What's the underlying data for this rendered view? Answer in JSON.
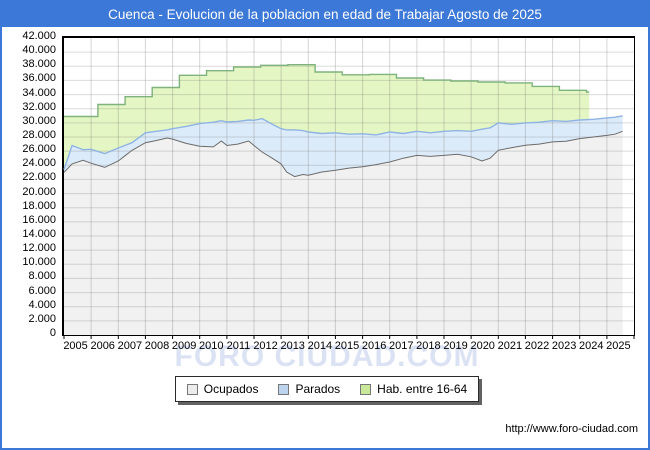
{
  "window": {
    "title": "Cuenca - Evolucion de la poblacion en edad de Trabajar Agosto de 2025",
    "title_bar_color": "#3c78d8",
    "frame_color": "#3c78d8"
  },
  "watermark": {
    "text": "FORO CIUDAD.COM"
  },
  "footer": {
    "url": "http://www.foro-ciudad.com"
  },
  "legend": {
    "items": [
      {
        "label": "Ocupados",
        "swatch_fill": "#ececec",
        "swatch_border": "#777777"
      },
      {
        "label": "Parados",
        "swatch_fill": "#bcd4ee",
        "swatch_border": "#777777"
      },
      {
        "label": "Hab. entre 16-64",
        "swatch_fill": "#c9e89a",
        "swatch_border": "#777777"
      }
    ]
  },
  "chart_data": {
    "type": "area",
    "title": "Cuenca - Evolucion de la poblacion en edad de Trabajar Agosto de 2025",
    "xlabel": "",
    "ylabel": "",
    "xlim": [
      2005,
      2026
    ],
    "ylim": [
      0,
      42000
    ],
    "grid": true,
    "legend_position": "bottom-outside",
    "stacking": "Parados is stacked on top of Ocupados (blue band = Ocupados+Parados); Hab. entre 16-64 is a yearly stepped background area ending early 2024",
    "x_ticks": [
      "2005",
      "2006",
      "2007",
      "2008",
      "2009",
      "2010",
      "2011",
      "2012",
      "2013",
      "2014",
      "2015",
      "2016",
      "2017",
      "2018",
      "2019",
      "2020",
      "2021",
      "2022",
      "2023",
      "2024",
      "2025"
    ],
    "y_ticks": [
      "42.000",
      "40.000",
      "38.000",
      "36.000",
      "34.000",
      "32.000",
      "30.000",
      "28.000",
      "26.000",
      "24.000",
      "22.000",
      "20.000",
      "18.000",
      "16.000",
      "14.000",
      "12.000",
      "10.000",
      "8.000",
      "6.000",
      "4.000",
      "2.000",
      "0"
    ],
    "series": [
      {
        "name": "Ocupados",
        "style": "area",
        "line_color": "#6b6b6b",
        "fill_color": "#f1f1f1",
        "x": [
          2005.0,
          2005.3,
          2005.7,
          2006.0,
          2006.5,
          2007.0,
          2007.5,
          2008.0,
          2008.4,
          2008.8,
          2009.0,
          2009.5,
          2010.0,
          2010.5,
          2010.8,
          2011.0,
          2011.4,
          2011.8,
          2012.0,
          2012.3,
          2012.7,
          2013.0,
          2013.2,
          2013.5,
          2013.8,
          2014.0,
          2014.5,
          2015.0,
          2015.5,
          2016.0,
          2016.5,
          2017.0,
          2017.5,
          2018.0,
          2018.5,
          2019.0,
          2019.5,
          2020.0,
          2020.4,
          2020.7,
          2021.0,
          2021.5,
          2022.0,
          2022.5,
          2023.0,
          2023.5,
          2024.0,
          2024.5,
          2025.0,
          2025.3,
          2025.58
        ],
        "values": [
          23000,
          24200,
          24700,
          24300,
          23700,
          24600,
          26100,
          27200,
          27500,
          27860,
          27700,
          27100,
          26680,
          26600,
          27430,
          26800,
          27000,
          27430,
          26800,
          25880,
          24930,
          24200,
          23050,
          22400,
          22700,
          22600,
          23050,
          23300,
          23600,
          23800,
          24100,
          24460,
          25000,
          25400,
          25250,
          25400,
          25550,
          25200,
          24600,
          25000,
          26120,
          26500,
          26830,
          27000,
          27300,
          27400,
          27770,
          28000,
          28230,
          28400,
          28800
        ]
      },
      {
        "name": "Parados",
        "style": "area-stacked-on-Ocupados",
        "line_color": "#8fb4e3",
        "fill_color": "#dcebf9",
        "x": [
          2005.0,
          2005.3,
          2005.7,
          2006.0,
          2006.5,
          2007.0,
          2007.5,
          2008.0,
          2008.4,
          2008.8,
          2009.0,
          2009.5,
          2010.0,
          2010.5,
          2010.8,
          2011.0,
          2011.4,
          2011.8,
          2012.0,
          2012.3,
          2012.7,
          2013.0,
          2013.2,
          2013.5,
          2013.8,
          2014.0,
          2014.5,
          2015.0,
          2015.5,
          2016.0,
          2016.5,
          2017.0,
          2017.5,
          2018.0,
          2018.5,
          2019.0,
          2019.5,
          2020.0,
          2020.4,
          2020.7,
          2021.0,
          2021.5,
          2022.0,
          2022.5,
          2023.0,
          2023.5,
          2024.0,
          2024.5,
          2025.0,
          2025.3,
          2025.58
        ],
        "values": [
          400,
          2600,
          1500,
          1960,
          1950,
          1840,
          1100,
          1400,
          1300,
          1140,
          1480,
          2400,
          3210,
          3500,
          2870,
          3320,
          3200,
          2970,
          3560,
          4720,
          4820,
          4980,
          5950,
          6600,
          6200,
          6100,
          5450,
          5300,
          4800,
          4650,
          4200,
          4240,
          3500,
          3400,
          3350,
          3400,
          3350,
          3600,
          4500,
          4300,
          3880,
          3300,
          3170,
          3100,
          3000,
          2800,
          2630,
          2500,
          2470,
          2400,
          2200
        ]
      },
      {
        "name": "Hab. entre 16-64",
        "style": "step-area",
        "line_color": "#7fb27c",
        "fill_color": "#e4f6c4",
        "step_offset": 0.25,
        "end_x": 2024.35,
        "x": [
          2005,
          2006,
          2007,
          2008,
          2009,
          2010,
          2011,
          2012,
          2013,
          2014,
          2015,
          2016,
          2017,
          2018,
          2019,
          2020,
          2021,
          2022,
          2023,
          2024
        ],
        "values": [
          30900,
          32600,
          33700,
          35000,
          36730,
          37380,
          37900,
          38140,
          38230,
          37190,
          36800,
          36850,
          36350,
          36050,
          35920,
          35780,
          35650,
          35150,
          34600,
          34360
        ]
      }
    ]
  }
}
